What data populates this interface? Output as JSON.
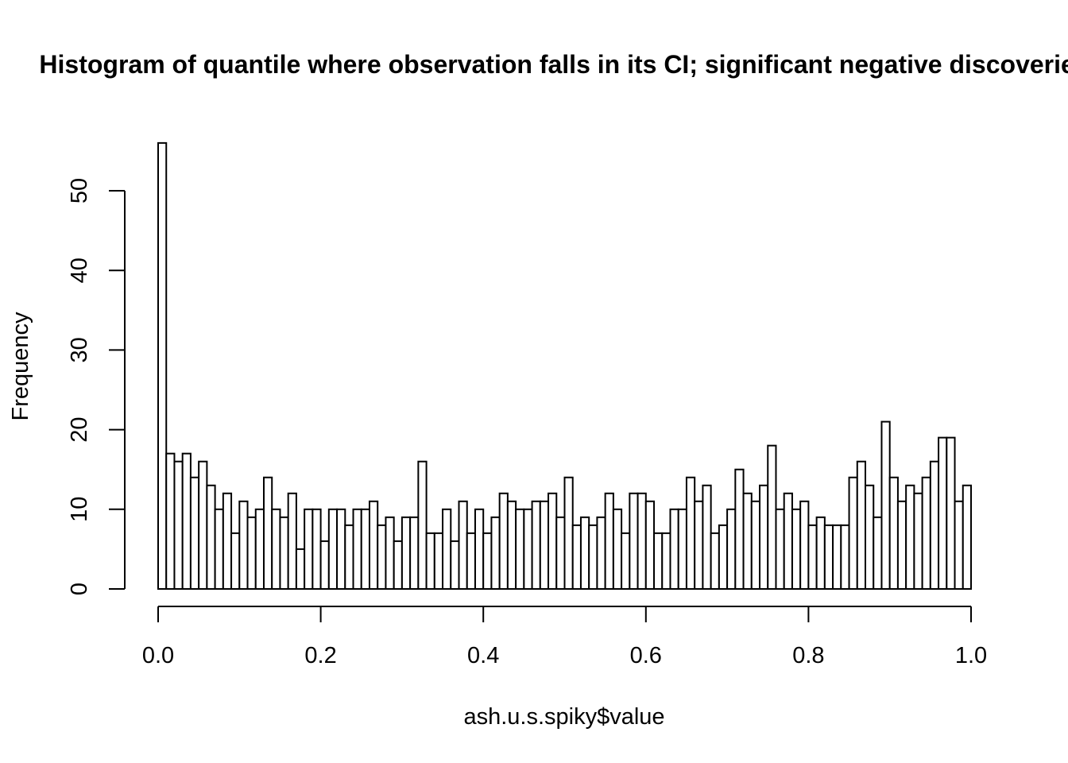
{
  "chart_data": {
    "type": "bar",
    "title": "Histogram of quantile where observation falls in its CI; significant negative discoveries",
    "xlabel": "ash.u.s.spiky$value",
    "ylabel": "Frequency",
    "xlim": [
      0,
      1
    ],
    "ylim": [
      0,
      56
    ],
    "bin_width": 0.01,
    "x_ticks": [
      "0.0",
      "0.2",
      "0.4",
      "0.6",
      "0.8",
      "1.0"
    ],
    "y_ticks": [
      "0",
      "10",
      "20",
      "30",
      "40",
      "50"
    ],
    "values": [
      56,
      17,
      16,
      17,
      14,
      16,
      13,
      10,
      12,
      7,
      11,
      9,
      10,
      14,
      10,
      9,
      12,
      5,
      10,
      10,
      6,
      10,
      10,
      8,
      10,
      10,
      11,
      8,
      9,
      6,
      9,
      9,
      16,
      7,
      7,
      10,
      6,
      11,
      7,
      10,
      7,
      9,
      12,
      11,
      10,
      10,
      11,
      11,
      12,
      9,
      14,
      8,
      9,
      8,
      9,
      12,
      10,
      7,
      12,
      12,
      11,
      7,
      7,
      10,
      10,
      14,
      11,
      13,
      7,
      8,
      10,
      15,
      12,
      11,
      13,
      18,
      10,
      12,
      10,
      11,
      8,
      9,
      8,
      8,
      8,
      14,
      16,
      13,
      9,
      21,
      14,
      11,
      13,
      12,
      14,
      16,
      19,
      19,
      11,
      13
    ],
    "grid": false,
    "legend": "none"
  }
}
